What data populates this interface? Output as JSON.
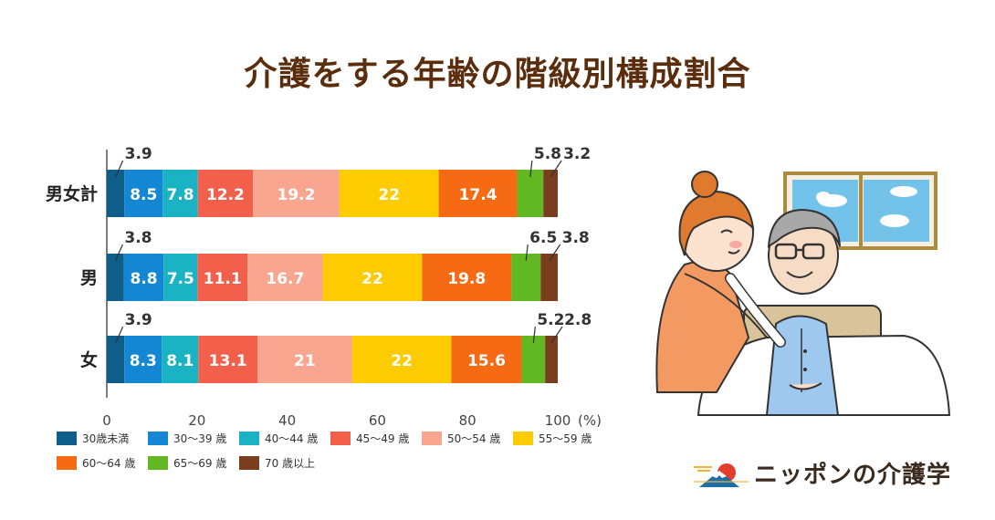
{
  "title": "介護をする年齢の階級別構成割合",
  "logo": {
    "text": "ニッポンの介護学"
  },
  "chart_data": {
    "type": "bar",
    "orientation": "horizontal-stacked-percent",
    "categories": [
      "男女計",
      "男",
      "女"
    ],
    "xlim": [
      0,
      100
    ],
    "x_ticks": [
      "0",
      "20",
      "40",
      "60",
      "80",
      "100"
    ],
    "x_unit": "(%)",
    "legend_position": "bottom",
    "series": [
      {
        "name": "30歳未満",
        "color": "#0e5e8a",
        "values": [
          3.9,
          3.8,
          3.9
        ]
      },
      {
        "name": "30～39 歳",
        "color": "#1387d4",
        "values": [
          8.5,
          8.8,
          8.3
        ]
      },
      {
        "name": "40～44 歳",
        "color": "#19b3c4",
        "values": [
          7.8,
          7.5,
          8.1
        ]
      },
      {
        "name": "45～49 歳",
        "color": "#f25f4b",
        "values": [
          12.2,
          11.1,
          13.1
        ]
      },
      {
        "name": "50～54 歳",
        "color": "#f8a68f",
        "values": [
          19.2,
          16.7,
          21
        ]
      },
      {
        "name": "55～59 歳",
        "color": "#fccb00",
        "values": [
          22,
          22,
          22
        ]
      },
      {
        "name": "60～64 歳",
        "color": "#f56a12",
        "values": [
          17.4,
          19.8,
          15.6
        ]
      },
      {
        "name": "65～69 歳",
        "color": "#62b822",
        "values": [
          5.8,
          6.5,
          5.2
        ]
      },
      {
        "name": "70 歳以上",
        "color": "#7a3d1d",
        "values": [
          3.2,
          3.8,
          2.8
        ]
      }
    ]
  }
}
